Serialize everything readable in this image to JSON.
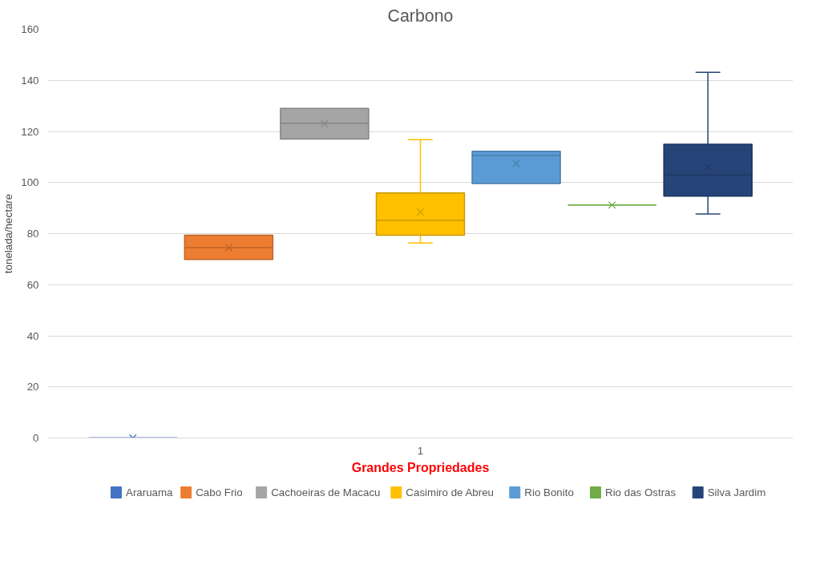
{
  "chart_data": {
    "type": "box",
    "title": "Carbono",
    "xlabel": "Grandes Propriedades",
    "ylabel": "tonelada/hectare",
    "categories": [
      "1"
    ],
    "ylim": [
      0,
      160
    ],
    "yticks": [
      0,
      20,
      40,
      60,
      80,
      100,
      120,
      140,
      160
    ],
    "grid": "y",
    "legend": "bottom",
    "series": [
      {
        "name": "Araruama",
        "color": "#4472c4",
        "boxes": [
          {
            "low": 0,
            "q1": 0,
            "median": 0,
            "q3": 0,
            "high": 0,
            "mean": 0
          }
        ]
      },
      {
        "name": "Cabo Frio",
        "color": "#ed7d31",
        "boxes": [
          {
            "low": 69.9,
            "q1": 69.9,
            "median": 74.5,
            "q3": 79.4,
            "high": 79.4,
            "mean": 74.5
          }
        ]
      },
      {
        "name": "Cachoeiras de Macacu",
        "color": "#a5a5a5",
        "boxes": [
          {
            "low": 117,
            "q1": 117,
            "median": 123.2,
            "q3": 129,
            "high": 129,
            "mean": 123
          }
        ]
      },
      {
        "name": "Casimiro de Abreu",
        "color": "#ffc000",
        "boxes": [
          {
            "low": 76.3,
            "q1": 79.4,
            "median": 85.2,
            "q3": 95.9,
            "high": 116.8,
            "mean": 88.5
          }
        ]
      },
      {
        "name": "Rio Bonito",
        "color": "#5b9bd5",
        "boxes": [
          {
            "low": 99.6,
            "q1": 99.6,
            "median": 110.6,
            "q3": 112.2,
            "high": 112.2,
            "mean": 107.5
          }
        ]
      },
      {
        "name": "Rio das Ostras",
        "color": "#70ad47",
        "boxes": [
          {
            "low": 91.2,
            "q1": 91.2,
            "median": 91.2,
            "q3": 91.2,
            "high": 91.2,
            "mean": 91.2
          }
        ]
      },
      {
        "name": "Silva Jardim",
        "color": "#264478",
        "boxes": [
          {
            "low": 87.7,
            "q1": 94.7,
            "median": 103,
            "q3": 115,
            "high": 143.1,
            "mean": 106
          }
        ]
      }
    ]
  }
}
